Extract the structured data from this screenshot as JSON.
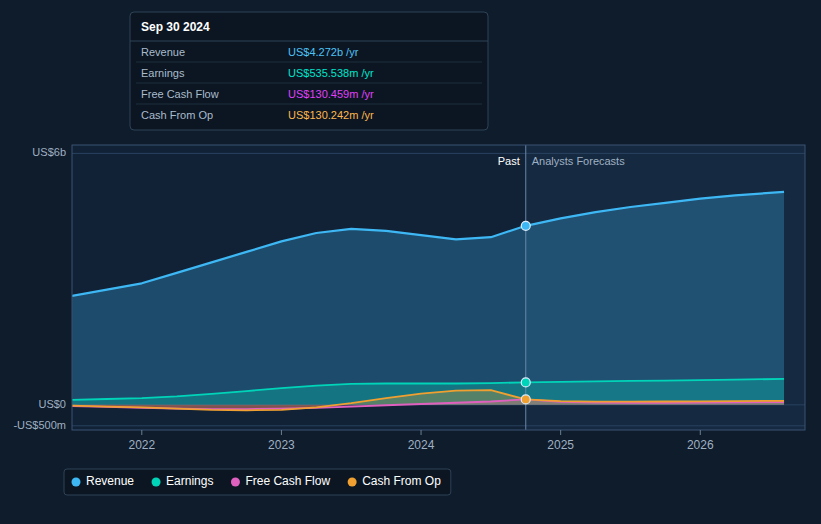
{
  "chart_data": {
    "type": "area",
    "x": [
      2021.5,
      2021.75,
      2022.0,
      2022.25,
      2022.5,
      2022.75,
      2023.0,
      2023.25,
      2023.5,
      2023.75,
      2024.0,
      2024.25,
      2024.5,
      2024.75,
      2025.0,
      2025.25,
      2025.5,
      2025.75,
      2026.0,
      2026.25,
      2026.6
    ],
    "series": [
      {
        "name": "Revenue",
        "color": "#3eb8f5",
        "values": [
          2.6,
          2.75,
          2.9,
          3.15,
          3.4,
          3.65,
          3.9,
          4.1,
          4.2,
          4.15,
          4.05,
          3.95,
          4.0,
          4.272,
          4.45,
          4.6,
          4.72,
          4.82,
          4.92,
          5.0,
          5.08
        ]
      },
      {
        "name": "Earnings",
        "color": "#00d4b8",
        "values": [
          0.12,
          0.14,
          0.16,
          0.2,
          0.26,
          0.33,
          0.4,
          0.46,
          0.5,
          0.51,
          0.51,
          0.51,
          0.52,
          0.5355,
          0.55,
          0.56,
          0.57,
          0.58,
          0.59,
          0.6,
          0.62
        ]
      },
      {
        "name": "Free Cash Flow",
        "color": "#e060c0",
        "values": [
          -0.03,
          -0.05,
          -0.07,
          -0.09,
          -0.1,
          -0.1,
          -0.09,
          -0.07,
          -0.04,
          -0.01,
          0.02,
          0.05,
          0.08,
          0.13,
          0.07,
          0.055,
          0.05,
          0.05,
          0.055,
          0.06,
          0.065
        ]
      },
      {
        "name": "Cash From Op",
        "color": "#f0a030",
        "values": [
          -0.02,
          -0.04,
          -0.06,
          -0.09,
          -0.12,
          -0.13,
          -0.12,
          -0.06,
          0.04,
          0.16,
          0.27,
          0.34,
          0.35,
          0.13,
          0.09,
          0.075,
          0.075,
          0.08,
          0.085,
          0.09,
          0.095
        ]
      }
    ],
    "xlim": [
      2021.5,
      2026.75
    ],
    "xticks": [
      2022,
      2023,
      2024,
      2025,
      2026
    ],
    "ylim": [
      -0.6,
      6.2
    ],
    "yticks": [
      {
        "value": -0.5,
        "label": "-US$500m"
      },
      {
        "value": 0,
        "label": "US$0"
      },
      {
        "value": 6,
        "label": "US$6b"
      }
    ],
    "grid": true,
    "legend": "bottom",
    "divider": {
      "x": 2024.75,
      "labels": [
        "Past",
        "Analysts Forecasts"
      ]
    },
    "dots": [
      {
        "x": 2024.75,
        "y": 4.272,
        "color": "#3eb8f5"
      },
      {
        "x": 2024.75,
        "y": 0.5355,
        "color": "#00d4b8"
      },
      {
        "x": 2024.75,
        "y": 0.13,
        "color": "#f0a030"
      }
    ],
    "tooltip": {
      "title": "Sep 30 2024",
      "rows": [
        {
          "label": "Revenue",
          "text": "US$4.272b /yr",
          "color": "#4fc3f7"
        },
        {
          "label": "Earnings",
          "text": "US$535.538m /yr",
          "color": "#00e5cc"
        },
        {
          "label": "Free Cash Flow",
          "text": "US$130.459m /yr",
          "color": "#e040fb"
        },
        {
          "label": "Cash From Op",
          "text": "US$130.242m /yr",
          "color": "#ffb74d"
        }
      ]
    }
  }
}
